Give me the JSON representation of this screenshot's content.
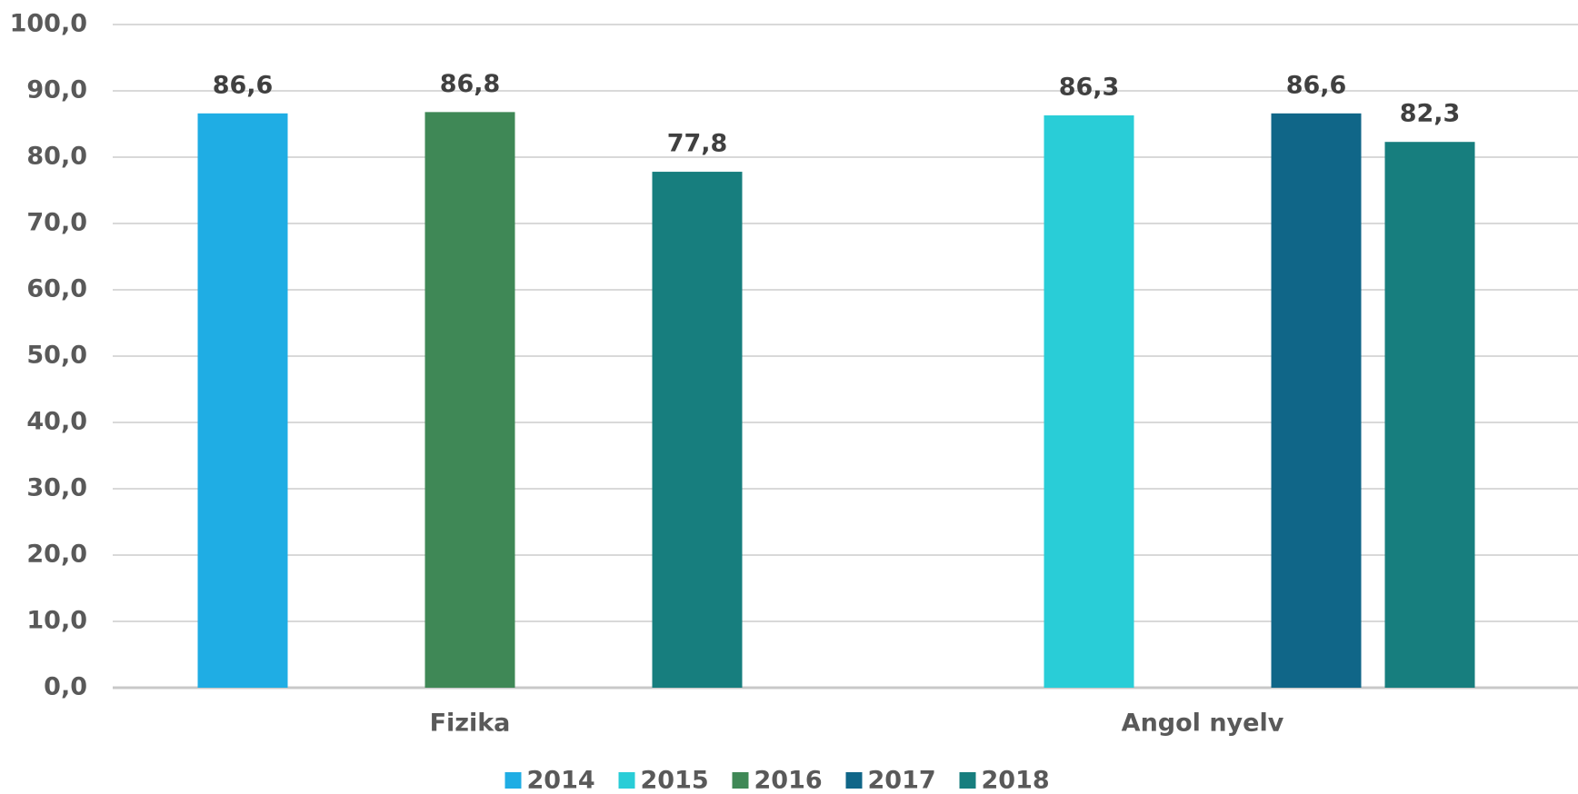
{
  "chart_data": {
    "type": "bar",
    "categories": [
      "Fizika",
      "Angol nyelv"
    ],
    "series": [
      {
        "name": "2014",
        "color": "#1fade4",
        "values": [
          86.6,
          null
        ],
        "value_labels": [
          "86,6",
          null
        ]
      },
      {
        "name": "2015",
        "color": "#29cdd7",
        "values": [
          null,
          86.3
        ],
        "value_labels": [
          null,
          "86,3"
        ]
      },
      {
        "name": "2016",
        "color": "#3f8856",
        "values": [
          86.8,
          null
        ],
        "value_labels": [
          "86,8",
          null
        ]
      },
      {
        "name": "2017",
        "color": "#106688",
        "values": [
          null,
          86.6
        ],
        "value_labels": [
          null,
          "86,6"
        ]
      },
      {
        "name": "2018",
        "color": "#177e7e",
        "values": [
          77.8,
          82.3
        ],
        "value_labels": [
          "77,8",
          "82,3"
        ]
      }
    ],
    "ylim": [
      0,
      100
    ],
    "yticks": [
      {
        "value": 0,
        "label": "0,0"
      },
      {
        "value": 10,
        "label": "10,0"
      },
      {
        "value": 20,
        "label": "20,0"
      },
      {
        "value": 30,
        "label": "30,0"
      },
      {
        "value": 40,
        "label": "40,0"
      },
      {
        "value": 50,
        "label": "50,0"
      },
      {
        "value": 60,
        "label": "60,0"
      },
      {
        "value": 70,
        "label": "70,0"
      },
      {
        "value": 80,
        "label": "80,0"
      },
      {
        "value": 90,
        "label": "90,0"
      },
      {
        "value": 100,
        "label": "100,0"
      }
    ],
    "grid": true,
    "legend": "bottom"
  }
}
